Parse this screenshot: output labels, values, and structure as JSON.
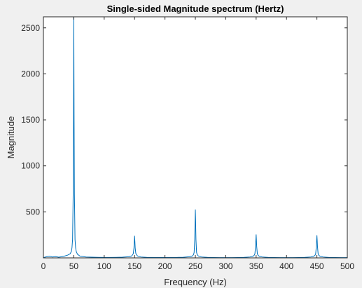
{
  "chart_data": {
    "type": "line",
    "title": "Single-sided Magnitude spectrum (Hertz)",
    "xlabel": "Frequency (Hz)",
    "ylabel": "Magnitude",
    "xlim": [
      0,
      500
    ],
    "ylim": [
      0,
      2620
    ],
    "x_ticks": [
      0,
      50,
      100,
      150,
      200,
      250,
      300,
      350,
      400,
      450,
      500
    ],
    "y_ticks": [
      500,
      1000,
      1500,
      2000,
      2500
    ],
    "grid": false,
    "line_color": "#0072bd",
    "series": [
      {
        "x": [
          0,
          5,
          10,
          15,
          20,
          25,
          30,
          35,
          40,
          44,
          46,
          47,
          48,
          49,
          49.5,
          50,
          50.5,
          51,
          52,
          53,
          54,
          56,
          60,
          70,
          80,
          90,
          100,
          110,
          120,
          130,
          140,
          145,
          147,
          148,
          149,
          149.5,
          150,
          150.5,
          151,
          152,
          153,
          155,
          160,
          170,
          180,
          190,
          200,
          210,
          220,
          230,
          240,
          245,
          247,
          248,
          249,
          249.5,
          250,
          250.5,
          251,
          252,
          253,
          255,
          260,
          270,
          280,
          290,
          300,
          310,
          320,
          330,
          340,
          345,
          347,
          348,
          349,
          349.5,
          350,
          350.5,
          351,
          352,
          353,
          355,
          360,
          370,
          380,
          390,
          400,
          410,
          420,
          430,
          440,
          445,
          447,
          448,
          449,
          449.5,
          450,
          450.5,
          451,
          452,
          453,
          455,
          460,
          470,
          480,
          490,
          500
        ],
        "y": [
          3,
          12,
          18,
          10,
          14,
          8,
          12,
          20,
          30,
          45,
          70,
          110,
          200,
          700,
          1500,
          2620,
          1500,
          700,
          200,
          110,
          70,
          40,
          20,
          10,
          8,
          6,
          5,
          5,
          6,
          8,
          12,
          20,
          35,
          50,
          110,
          180,
          240,
          180,
          110,
          50,
          35,
          20,
          10,
          6,
          5,
          4,
          4,
          4,
          5,
          7,
          12,
          20,
          35,
          60,
          200,
          380,
          525,
          380,
          200,
          60,
          35,
          20,
          10,
          6,
          4,
          3,
          3,
          3,
          4,
          6,
          10,
          18,
          30,
          45,
          120,
          190,
          255,
          190,
          120,
          45,
          30,
          18,
          10,
          5,
          4,
          3,
          3,
          3,
          4,
          6,
          10,
          18,
          30,
          45,
          120,
          190,
          245,
          190,
          120,
          45,
          30,
          18,
          10,
          5,
          4,
          3,
          3
        ]
      }
    ]
  }
}
